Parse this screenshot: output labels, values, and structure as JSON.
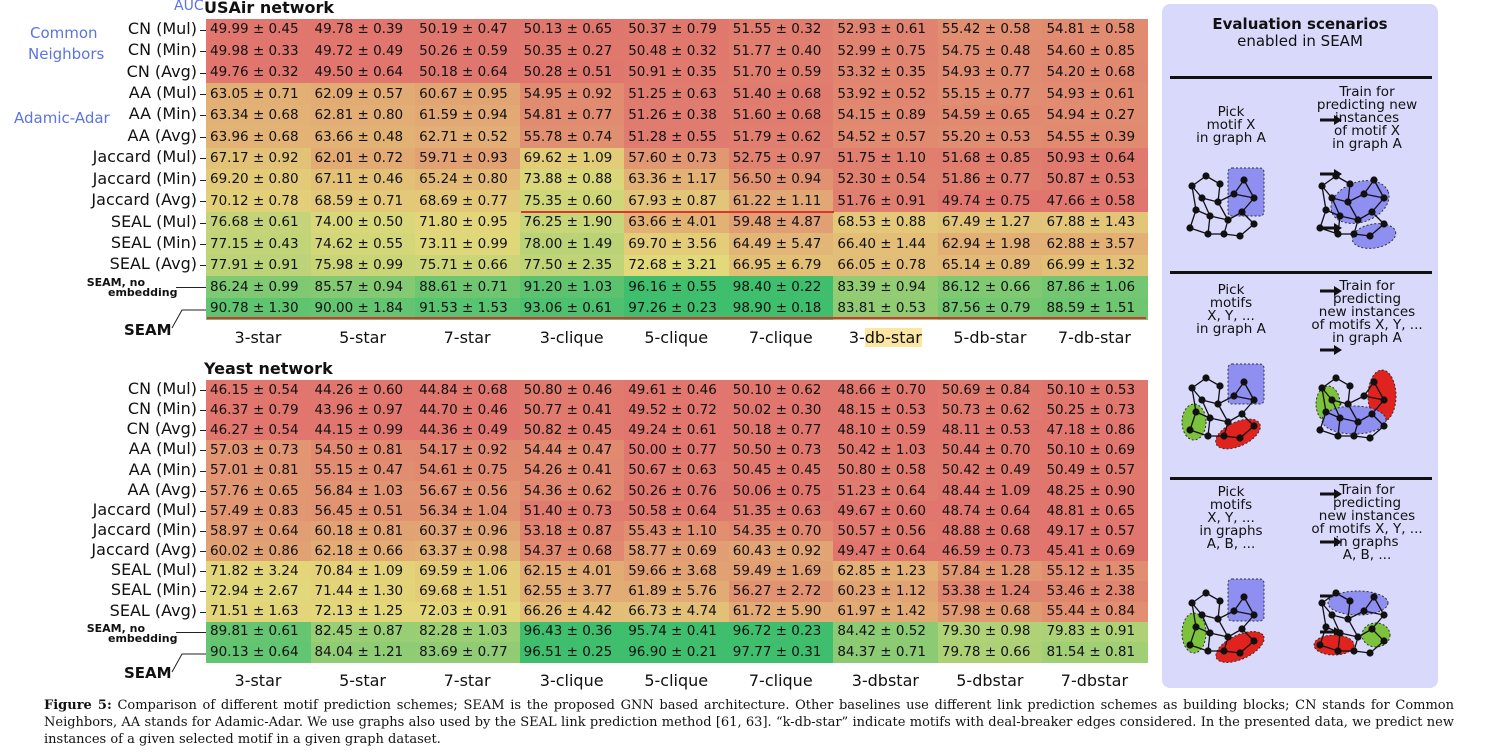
{
  "auc_label": "AUC",
  "group_labels": {
    "common_neighbors": [
      "Common",
      "Neighbors"
    ],
    "adamic_adar": "Adamic-Adar"
  },
  "columns": [
    "3-star",
    "5-star",
    "7-star",
    "3-clique",
    "5-clique",
    "7-clique",
    "3-db-star",
    "5-db-star",
    "7-db-star"
  ],
  "columns_yeast": [
    "3-star",
    "5-star",
    "7-star",
    "3-clique",
    "5-clique",
    "7-clique",
    "3-dbstar",
    "5-dbstar",
    "7-dbstar"
  ],
  "highlight_prefix": "3-",
  "highlight_rest": "db-star",
  "rows": [
    "CN (Mul)",
    "CN (Min)",
    "CN (Avg)",
    "AA (Mul)",
    "AA (Min)",
    "AA (Avg)",
    "Jaccard (Mul)",
    "Jaccard (Min)",
    "Jaccard (Avg)",
    "SEAL (Mul)",
    "SEAL (Min)",
    "SEAL (Avg)"
  ],
  "seam_noemb_label": [
    "SEAM, no",
    "embedding"
  ],
  "seam_label": "SEAM",
  "usair": {
    "title": "USAir network",
    "values": [
      [
        "49.99 ± 0.45",
        "49.78 ± 0.39",
        "50.19 ± 0.47",
        "50.13 ± 0.65",
        "50.37 ± 0.79",
        "51.55 ± 0.32",
        "52.93 ± 0.61",
        "55.42 ± 0.58",
        "54.81 ± 0.58"
      ],
      [
        "49.98 ± 0.33",
        "49.72 ± 0.49",
        "50.26 ± 0.59",
        "50.35 ± 0.27",
        "50.48 ± 0.32",
        "51.77 ± 0.40",
        "52.99 ± 0.75",
        "54.75 ± 0.48",
        "54.60 ± 0.85"
      ],
      [
        "49.76 ± 0.32",
        "49.50 ± 0.64",
        "50.18 ± 0.64",
        "50.28 ± 0.51",
        "50.91 ± 0.35",
        "51.70 ± 0.59",
        "53.32 ± 0.35",
        "54.93 ± 0.77",
        "54.20 ± 0.68"
      ],
      [
        "63.05 ± 0.71",
        "62.09 ± 0.57",
        "60.67 ± 0.95",
        "54.95 ± 0.92",
        "51.25 ± 0.63",
        "51.40 ± 0.68",
        "53.92 ± 0.52",
        "55.15 ± 0.77",
        "54.93 ± 0.61"
      ],
      [
        "63.34 ± 0.68",
        "62.81 ± 0.80",
        "61.59 ± 0.94",
        "54.81 ± 0.77",
        "51.26 ± 0.38",
        "51.60 ± 0.68",
        "54.15 ± 0.89",
        "54.59 ± 0.65",
        "54.94 ± 0.27"
      ],
      [
        "63.96 ± 0.68",
        "63.66 ± 0.48",
        "62.71 ± 0.52",
        "55.78 ± 0.74",
        "51.28 ± 0.55",
        "51.79 ± 0.62",
        "54.52 ± 0.57",
        "55.20 ± 0.53",
        "54.55 ± 0.39"
      ],
      [
        "67.17 ± 0.92",
        "62.01 ± 0.72",
        "59.71 ± 0.93",
        "69.62 ± 1.09",
        "57.60 ± 0.73",
        "52.75 ± 0.97",
        "51.75 ± 1.10",
        "51.68 ± 0.85",
        "50.93 ± 0.64"
      ],
      [
        "69.20 ± 0.80",
        "67.11 ± 0.46",
        "65.24 ± 0.80",
        "73.88 ± 0.88",
        "63.36 ± 1.17",
        "56.50 ± 0.94",
        "52.30 ± 0.54",
        "51.86 ± 0.77",
        "50.87 ± 0.53"
      ],
      [
        "70.12 ± 0.78",
        "68.59 ± 0.71",
        "68.69 ± 0.77",
        "75.35 ± 0.60",
        "67.93 ± 0.87",
        "61.22 ± 1.11",
        "51.76 ± 0.91",
        "49.74 ± 0.75",
        "47.66 ± 0.58"
      ],
      [
        "76.68 ± 0.61",
        "74.00 ± 0.50",
        "71.80 ± 0.95",
        "76.25 ± 1.90",
        "63.66 ± 4.01",
        "59.48 ± 4.87",
        "68.53 ± 0.88",
        "67.49 ± 1.27",
        "67.88 ± 1.43"
      ],
      [
        "77.15 ± 0.43",
        "74.62 ± 0.55",
        "73.11 ± 0.99",
        "78.00 ± 1.49",
        "69.70 ± 3.56",
        "64.49 ± 5.47",
        "66.40 ± 1.44",
        "62.94 ± 1.98",
        "62.88 ± 3.57"
      ],
      [
        "77.91 ± 0.91",
        "75.98 ± 0.99",
        "75.71 ± 0.66",
        "77.50 ± 2.35",
        "72.68 ± 3.21",
        "66.95 ± 6.79",
        "66.05 ± 0.78",
        "65.14 ± 0.89",
        "66.99 ± 1.32"
      ],
      [
        "86.24 ± 0.99",
        "85.57 ± 0.94",
        "88.61 ± 0.71",
        "91.20 ± 1.03",
        "96.16 ± 0.55",
        "98.40 ± 0.22",
        "83.39 ± 0.94",
        "86.12 ± 0.66",
        "87.86 ± 1.06"
      ],
      [
        "90.78 ± 1.30",
        "90.00 ± 1.84",
        "91.53 ± 1.53",
        "93.06 ± 0.61",
        "97.26 ± 0.23",
        "98.90 ± 0.18",
        "83.81 ± 0.53",
        "87.56 ± 0.79",
        "88.59 ± 1.51"
      ]
    ]
  },
  "yeast": {
    "title": "Yeast network",
    "values": [
      [
        "46.15 ± 0.54",
        "44.26 ± 0.60",
        "44.84 ± 0.68",
        "50.80 ± 0.46",
        "49.61 ± 0.46",
        "50.10 ± 0.62",
        "48.66 ± 0.70",
        "50.69 ± 0.84",
        "50.10 ± 0.53"
      ],
      [
        "46.37 ± 0.79",
        "43.96 ± 0.97",
        "44.70 ± 0.46",
        "50.77 ± 0.41",
        "49.52 ± 0.72",
        "50.02 ± 0.30",
        "48.15 ± 0.53",
        "50.73 ± 0.62",
        "50.25 ± 0.73"
      ],
      [
        "46.27 ± 0.54",
        "44.15 ± 0.99",
        "44.36 ± 0.49",
        "50.82 ± 0.45",
        "49.24 ± 0.61",
        "50.18 ± 0.77",
        "48.10 ± 0.59",
        "48.11 ± 0.53",
        "47.18 ± 0.86"
      ],
      [
        "57.03 ± 0.73",
        "54.50 ± 0.81",
        "54.17 ± 0.92",
        "54.44 ± 0.47",
        "50.00 ± 0.77",
        "50.50 ± 0.73",
        "50.42 ± 1.03",
        "50.44 ± 0.70",
        "50.10 ± 0.69"
      ],
      [
        "57.01 ± 0.81",
        "55.15 ± 0.47",
        "54.61 ± 0.75",
        "54.26 ± 0.41",
        "50.67 ± 0.63",
        "50.45 ± 0.45",
        "50.80 ± 0.58",
        "50.42 ± 0.49",
        "50.49 ± 0.57"
      ],
      [
        "57.76 ± 0.65",
        "56.84 ± 1.03",
        "56.67 ± 0.56",
        "54.36 ± 0.62",
        "50.26 ± 0.76",
        "50.06 ± 0.75",
        "51.23 ± 0.64",
        "48.44 ± 1.09",
        "48.25 ± 0.90"
      ],
      [
        "57.49 ± 0.83",
        "56.45 ± 0.51",
        "56.34 ± 1.04",
        "51.40 ± 0.73",
        "50.58 ± 0.64",
        "51.35 ± 0.63",
        "49.67 ± 0.60",
        "48.74 ± 0.64",
        "48.81 ± 0.65"
      ],
      [
        "58.97 ± 0.64",
        "60.18 ± 0.81",
        "60.37 ± 0.96",
        "53.18 ± 0.87",
        "55.43 ± 1.10",
        "54.35 ± 0.70",
        "50.57 ± 0.56",
        "48.88 ± 0.68",
        "49.17 ± 0.57"
      ],
      [
        "60.02 ± 0.86",
        "62.18 ± 0.66",
        "63.37 ± 0.98",
        "54.37 ± 0.68",
        "58.77 ± 0.69",
        "60.43 ± 0.92",
        "49.47 ± 0.64",
        "46.59 ± 0.73",
        "45.41 ± 0.69"
      ],
      [
        "71.82 ± 3.24",
        "70.84 ± 1.09",
        "69.59 ± 1.06",
        "62.15 ± 4.01",
        "59.66 ± 3.68",
        "59.49 ± 1.69",
        "62.85 ± 1.23",
        "57.84 ± 1.28",
        "55.12 ± 1.35"
      ],
      [
        "72.94 ± 2.67",
        "71.44 ± 1.30",
        "69.68 ± 1.51",
        "62.55 ± 3.77",
        "61.89 ± 5.76",
        "56.27 ± 2.72",
        "60.23 ± 1.12",
        "53.38 ± 1.24",
        "53.46 ± 2.38"
      ],
      [
        "71.51 ± 1.63",
        "72.13 ± 1.25",
        "72.03 ± 0.91",
        "66.26 ± 4.42",
        "66.73 ± 4.74",
        "61.72 ± 5.90",
        "61.97 ± 1.42",
        "57.98 ± 0.68",
        "55.44 ± 0.84"
      ],
      [
        "89.81 ± 0.61",
        "82.45 ± 0.87",
        "82.28 ± 1.03",
        "96.43 ± 0.36",
        "95.74 ± 0.41",
        "96.72 ± 0.23",
        "84.42 ± 0.52",
        "79.30 ± 0.98",
        "79.83 ± 0.91"
      ],
      [
        "90.13 ± 0.64",
        "84.04 ± 1.21",
        "83.69 ± 0.77",
        "96.51 ± 0.25",
        "96.90 ± 0.21",
        "97.77 ± 0.31",
        "84.37 ± 0.71",
        "79.78 ± 0.66",
        "81.54 ± 0.81"
      ]
    ]
  },
  "side_panel": {
    "title": [
      "Evaluation scenarios",
      "enabled in SEAM"
    ],
    "s1_left": [
      "Pick",
      "motif X",
      "in graph A"
    ],
    "s1_right": [
      "Train for",
      "predicting new",
      "instances",
      "of motif X",
      "in graph A"
    ],
    "s2_left": [
      "Pick",
      "motifs",
      "X, Y, ...",
      "in graph A"
    ],
    "s2_right": [
      "Train for",
      "predicting",
      "new instances",
      "of motifs X, Y, ...",
      "in graph A"
    ],
    "s3_left": [
      "Pick",
      "motifs",
      "X, Y, ...",
      "in graphs",
      "A, B, ..."
    ],
    "s3_right": [
      "Train for",
      "predicting",
      "new instances",
      "of motifs X, Y, ...",
      "in graphs",
      "A, B, ..."
    ]
  },
  "caption": {
    "lead": "Figure 5:",
    "text": "Comparison of different motif prediction schemes; SEAM is the proposed GNN based architecture. Other baselines use different link prediction schemes as building blocks; CN stands for Common Neighbors, AA stands for Adamic-Adar. We use graphs also used by the SEAL link prediction method [61, 63]. “k-db-star” indicate motifs with deal-breaker edges considered. In the presented data, we predict new instances of a given selected motif in a given graph dataset."
  },
  "colors": {
    "low": "#e0766e",
    "mid": "#e3d97a",
    "high": "#3fbf6e",
    "panel": "#d9d9fb",
    "accent_blue": "#5b74e0",
    "highlight": "#fbe7a1"
  }
}
